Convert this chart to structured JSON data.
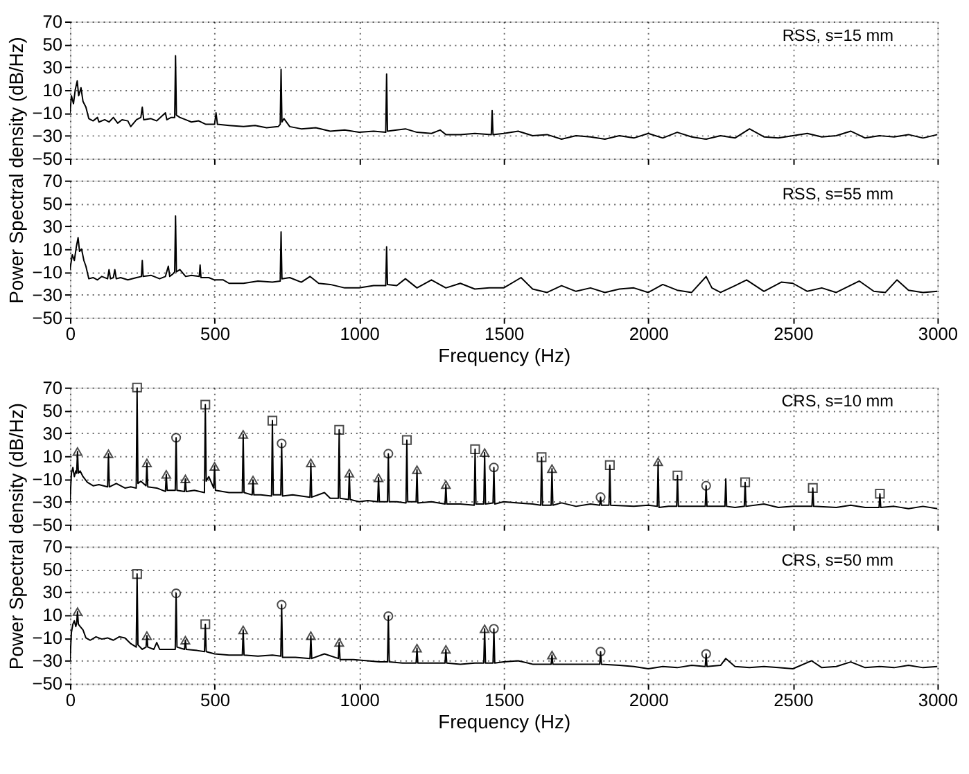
{
  "chart_data": [
    {
      "type": "line",
      "ylabel": "Power Spectral density (dB/Hz)",
      "annotations": [
        "RSS, s=15 mm"
      ],
      "xlim": [
        0,
        3000
      ],
      "xticks": [
        0,
        500,
        1000,
        1500,
        2000,
        2500,
        3000
      ],
      "ylim": [
        -50,
        70
      ],
      "yticks": [
        -50,
        -30,
        -10,
        10,
        30,
        50,
        70
      ],
      "grid": true,
      "tick_labels": "y",
      "series": [
        {
          "color": "#000000",
          "x": [
            0,
            5,
            12,
            18,
            25,
            30,
            38,
            45,
            55,
            65,
            80,
            95,
            100,
            120,
            135,
            150,
            165,
            180,
            200,
            210,
            230,
            245,
            250,
            255,
            280,
            300,
            330,
            335,
            350,
            362,
            365,
            368,
            380,
            400,
            420,
            445,
            470,
            500,
            505,
            510,
            550,
            600,
            640,
            680,
            720,
            727,
            730,
            733,
            740,
            760,
            800,
            850,
            900,
            950,
            1000,
            1050,
            1092,
            1095,
            1098,
            1130,
            1160,
            1200,
            1250,
            1280,
            1300,
            1350,
            1400,
            1457,
            1460,
            1463,
            1500,
            1550,
            1600,
            1650,
            1700,
            1750,
            1800,
            1850,
            1900,
            1950,
            2000,
            2050,
            2100,
            2150,
            2200,
            2250,
            2300,
            2350,
            2400,
            2450,
            2500,
            2550,
            2600,
            2650,
            2700,
            2750,
            2800,
            2850,
            2900,
            2950,
            3000
          ],
          "values": [
            -10,
            5,
            -2,
            10,
            18,
            5,
            12,
            0,
            -5,
            -15,
            -17,
            -14,
            -18,
            -16,
            -18,
            -14,
            -19,
            -16,
            -17,
            -22,
            -16,
            -14,
            -5,
            -16,
            -15,
            -17,
            -10,
            -16,
            -14,
            -14,
            40,
            -12,
            -14,
            -16,
            -18,
            -17,
            -20,
            -20,
            -10,
            -20,
            -21,
            -22,
            -21,
            -23,
            -22,
            -20,
            28,
            -18,
            -15,
            -22,
            -24,
            -23,
            -26,
            -25,
            -27,
            -26,
            -27,
            24,
            -26,
            -25,
            -24,
            -27,
            -28,
            -25,
            -29,
            -29,
            -28,
            -29,
            -8,
            -29,
            -28,
            -26,
            -30,
            -29,
            -33,
            -30,
            -31,
            -33,
            -30,
            -32,
            -28,
            -32,
            -27,
            -31,
            -33,
            -30,
            -32,
            -24,
            -31,
            -32,
            -30,
            -28,
            -31,
            -30,
            -26,
            -32,
            -30,
            -31,
            -29,
            -32,
            -29
          ]
        }
      ]
    },
    {
      "type": "line",
      "xlabel": "Frequency (Hz)",
      "annotations": [
        "RSS, s=55 mm"
      ],
      "xlim": [
        0,
        3000
      ],
      "xticks": [
        0,
        500,
        1000,
        1500,
        2000,
        2500,
        3000
      ],
      "ylim": [
        -50,
        70
      ],
      "yticks": [
        -50,
        -30,
        -10,
        10,
        30,
        50,
        70
      ],
      "grid": true,
      "series": [
        {
          "color": "#000000",
          "x": [
            0,
            8,
            15,
            22,
            28,
            33,
            40,
            48,
            55,
            65,
            80,
            95,
            110,
            130,
            135,
            140,
            150,
            155,
            160,
            175,
            200,
            230,
            247,
            250,
            253,
            280,
            310,
            330,
            340,
            345,
            355,
            362,
            365,
            368,
            380,
            400,
            420,
            447,
            450,
            453,
            480,
            500,
            530,
            550,
            600,
            650,
            700,
            727,
            730,
            733,
            760,
            800,
            830,
            860,
            900,
            950,
            1000,
            1050,
            1092,
            1095,
            1098,
            1130,
            1160,
            1200,
            1250,
            1300,
            1350,
            1400,
            1450,
            1500,
            1560,
            1600,
            1650,
            1700,
            1750,
            1800,
            1850,
            1900,
            1950,
            2000,
            2050,
            2100,
            2150,
            2200,
            2220,
            2250,
            2300,
            2340,
            2400,
            2460,
            2500,
            2550,
            2600,
            2650,
            2730,
            2780,
            2820,
            2860,
            2900,
            2950,
            3000
          ],
          "values": [
            -8,
            5,
            0,
            12,
            20,
            8,
            10,
            0,
            -5,
            -16,
            -15,
            -17,
            -14,
            -16,
            -8,
            -16,
            -15,
            -8,
            -16,
            -15,
            -17,
            -15,
            -14,
            0,
            -14,
            -13,
            -16,
            -14,
            -5,
            -14,
            -12,
            -10,
            39,
            -10,
            -8,
            -14,
            -13,
            -14,
            -4,
            -15,
            -15,
            -17,
            -17,
            -20,
            -20,
            -18,
            -19,
            -18,
            25,
            -16,
            -15,
            -19,
            -14,
            -20,
            -21,
            -24,
            -24,
            -22,
            -22,
            12,
            -21,
            -22,
            -16,
            -24,
            -17,
            -24,
            -20,
            -25,
            -24,
            -24,
            -15,
            -25,
            -28,
            -22,
            -27,
            -24,
            -28,
            -25,
            -24,
            -28,
            -21,
            -26,
            -28,
            -14,
            -24,
            -28,
            -22,
            -17,
            -27,
            -19,
            -20,
            -27,
            -24,
            -28,
            -18,
            -27,
            -28,
            -17,
            -26,
            -28,
            -27
          ]
        }
      ]
    },
    {
      "type": "line",
      "ylabel": "Power Spectral density (dB/Hz)",
      "annotations": [
        "CRS, s=10 mm"
      ],
      "xlim": [
        0,
        3000
      ],
      "xticks": [
        0,
        500,
        1000,
        1500,
        2000,
        2500,
        3000
      ],
      "ylim": [
        -50,
        70
      ],
      "yticks": [
        -50,
        -30,
        -10,
        10,
        30,
        50,
        70
      ],
      "grid": true,
      "tick_labels": "y",
      "series": [
        {
          "color": "#000000",
          "x": [
            0,
            5,
            10,
            15,
            20,
            23,
            26,
            29,
            35,
            45,
            60,
            80,
            100,
            130,
            133,
            136,
            160,
            190,
            210,
            229,
            232,
            235,
            245,
            263,
            266,
            269,
            300,
            330,
            333,
            336,
            364,
            367,
            370,
            396,
            399,
            402,
            430,
            465,
            468,
            471,
            480,
            497,
            500,
            503,
            550,
            596,
            599,
            602,
            630,
            633,
            636,
            660,
            697,
            700,
            703,
            729,
            732,
            735,
            770,
            800,
            830,
            833,
            836,
            880,
            900,
            928,
            931,
            934,
            963,
            966,
            969,
            1000,
            1030,
            1064,
            1067,
            1070,
            1098,
            1101,
            1104,
            1130,
            1162,
            1165,
            1168,
            1197,
            1200,
            1203,
            1250,
            1297,
            1300,
            1303,
            1350,
            1398,
            1401,
            1404,
            1431,
            1434,
            1437,
            1463,
            1466,
            1469,
            1500,
            1550,
            1600,
            1628,
            1631,
            1634,
            1664,
            1667,
            1670,
            1700,
            1750,
            1800,
            1832,
            1835,
            1838,
            1864,
            1867,
            1870,
            1950,
            2000,
            2031,
            2034,
            2037,
            2070,
            2098,
            2101,
            2104,
            2150,
            2197,
            2200,
            2203,
            2265,
            2268,
            2271,
            2300,
            2332,
            2335,
            2338,
            2400,
            2450,
            2500,
            2566,
            2569,
            2572,
            2650,
            2700,
            2750,
            2798,
            2801,
            2804,
            2850,
            2900,
            2950,
            3000
          ],
          "values": [
            -30,
            -5,
            0,
            -8,
            -3,
            -5,
            14,
            -5,
            -3,
            -8,
            -13,
            -16,
            -15,
            -17,
            12,
            -17,
            -14,
            -18,
            -17,
            -18,
            70,
            -14,
            -12,
            -16,
            4,
            -17,
            -18,
            -21,
            -6,
            -20,
            -20,
            26,
            -20,
            -21,
            -10,
            -21,
            -20,
            -22,
            55,
            -12,
            -8,
            -18,
            1,
            -20,
            -22,
            -22,
            29,
            -22,
            -24,
            -11,
            -24,
            -24,
            -25,
            41,
            -24,
            -24,
            21,
            -25,
            -24,
            -25,
            -26,
            4,
            -26,
            -22,
            -27,
            -27,
            33,
            -27,
            -28,
            -5,
            -28,
            -30,
            -29,
            -30,
            -9,
            -30,
            -30,
            12,
            -30,
            -30,
            -31,
            24,
            -30,
            -30,
            -2,
            -31,
            -30,
            -32,
            -15,
            -32,
            -32,
            -33,
            16,
            -32,
            -32,
            13,
            -32,
            -31,
            0,
            -32,
            -30,
            -31,
            -32,
            -33,
            9,
            -33,
            -33,
            -1,
            -33,
            -31,
            -34,
            -32,
            -33,
            -26,
            -33,
            -33,
            2,
            -33,
            -34,
            -33,
            -34,
            5,
            -35,
            -34,
            -34,
            -7,
            -34,
            -34,
            -34,
            -16,
            -34,
            -34,
            -10,
            -34,
            -35,
            -34,
            -13,
            -34,
            -32,
            -35,
            -34,
            -34,
            -18,
            -34,
            -35,
            -33,
            -35,
            -35,
            -23,
            -35,
            -34,
            -36,
            -34,
            -36
          ]
        },
        {
          "type": "scatter",
          "marker": "square",
          "color": "#000000",
          "x": [
            232,
            468,
            700,
            931,
            1165,
            1401,
            1631,
            1867,
            2101,
            2335,
            2569,
            2801
          ],
          "values": [
            70,
            55,
            41,
            33,
            24,
            16,
            9,
            2,
            -7,
            -13,
            -18,
            -23
          ]
        },
        {
          "type": "scatter",
          "marker": "circle",
          "color": "#000000",
          "x": [
            367,
            732,
            1101,
            1466,
            1835,
            2200
          ],
          "values": [
            26,
            21,
            12,
            0,
            -26,
            -16
          ]
        },
        {
          "type": "scatter",
          "marker": "triangle",
          "color": "#000000",
          "x": [
            26,
            133,
            266,
            333,
            399,
            500,
            599,
            633,
            833,
            966,
            1067,
            1200,
            1300,
            1434,
            1667,
            2034
          ],
          "values": [
            14,
            12,
            4,
            -6,
            -10,
            1,
            29,
            -11,
            4,
            -5,
            -9,
            -2,
            -15,
            13,
            -1,
            5
          ]
        }
      ]
    },
    {
      "type": "line",
      "xlabel": "Frequency (Hz)",
      "annotations": [
        "CRS, s=50 mm"
      ],
      "xlim": [
        0,
        3000
      ],
      "xticks": [
        0,
        500,
        1000,
        1500,
        2000,
        2500,
        3000
      ],
      "ylim": [
        -50,
        70
      ],
      "yticks": [
        -50,
        -30,
        -10,
        10,
        30,
        50,
        70
      ],
      "grid": true,
      "series": [
        {
          "color": "#000000",
          "x": [
            0,
            5,
            10,
            15,
            20,
            23,
            26,
            29,
            35,
            45,
            55,
            70,
            90,
            110,
            130,
            150,
            170,
            190,
            210,
            229,
            232,
            235,
            250,
            263,
            266,
            269,
            290,
            300,
            310,
            340,
            364,
            367,
            370,
            396,
            399,
            402,
            440,
            465,
            468,
            471,
            500,
            550,
            596,
            599,
            602,
            650,
            700,
            729,
            732,
            735,
            780,
            830,
            833,
            836,
            880,
            928,
            931,
            934,
            980,
            1030,
            1070,
            1098,
            1101,
            1104,
            1150,
            1197,
            1200,
            1203,
            1250,
            1297,
            1300,
            1303,
            1350,
            1400,
            1431,
            1434,
            1437,
            1463,
            1466,
            1469,
            1500,
            1550,
            1600,
            1664,
            1667,
            1670,
            1750,
            1832,
            1835,
            1838,
            1900,
            1950,
            2000,
            2050,
            2100,
            2150,
            2197,
            2200,
            2203,
            2250,
            2268,
            2300,
            2350,
            2400,
            2450,
            2500,
            2565,
            2600,
            2650,
            2700,
            2750,
            2800,
            2850,
            2900,
            2950,
            3000
          ],
          "values": [
            -30,
            -5,
            2,
            5,
            0,
            3,
            13,
            2,
            0,
            -3,
            -10,
            -12,
            -9,
            -11,
            -10,
            -12,
            -9,
            -10,
            -15,
            -18,
            46,
            -16,
            -20,
            -18,
            -8,
            -18,
            -20,
            -14,
            -20,
            -20,
            -20,
            29,
            -18,
            -20,
            -12,
            -20,
            -21,
            -22,
            2,
            -22,
            -24,
            -25,
            -25,
            -3,
            -25,
            -26,
            -25,
            -26,
            19,
            -27,
            -27,
            -28,
            -8,
            -28,
            -24,
            -28,
            -14,
            -29,
            -29,
            -30,
            -31,
            -31,
            9,
            -31,
            -32,
            -32,
            -19,
            -32,
            -32,
            -32,
            -20,
            -32,
            -33,
            -32,
            -32,
            -2,
            -32,
            -32,
            -2,
            -32,
            -31,
            -30,
            -33,
            -33,
            -25,
            -33,
            -33,
            -33,
            -22,
            -33,
            -34,
            -35,
            -37,
            -35,
            -36,
            -34,
            -35,
            -24,
            -35,
            -34,
            -28,
            -35,
            -36,
            -35,
            -36,
            -37,
            -30,
            -36,
            -35,
            -31,
            -36,
            -35,
            -36,
            -34,
            -36,
            -35
          ]
        },
        {
          "type": "scatter",
          "marker": "square",
          "color": "#000000",
          "x": [
            232,
            468
          ],
          "values": [
            46,
            2
          ]
        },
        {
          "type": "scatter",
          "marker": "circle",
          "color": "#000000",
          "x": [
            367,
            732,
            1101,
            1466,
            1835,
            2200
          ],
          "values": [
            29,
            19,
            9,
            -2,
            -22,
            -24
          ]
        },
        {
          "type": "scatter",
          "marker": "triangle",
          "color": "#000000",
          "x": [
            26,
            266,
            399,
            599,
            833,
            931,
            1200,
            1300,
            1434,
            1667
          ],
          "values": [
            13,
            -8,
            -12,
            -3,
            -8,
            -14,
            -19,
            -20,
            -2,
            -25
          ]
        }
      ]
    }
  ]
}
